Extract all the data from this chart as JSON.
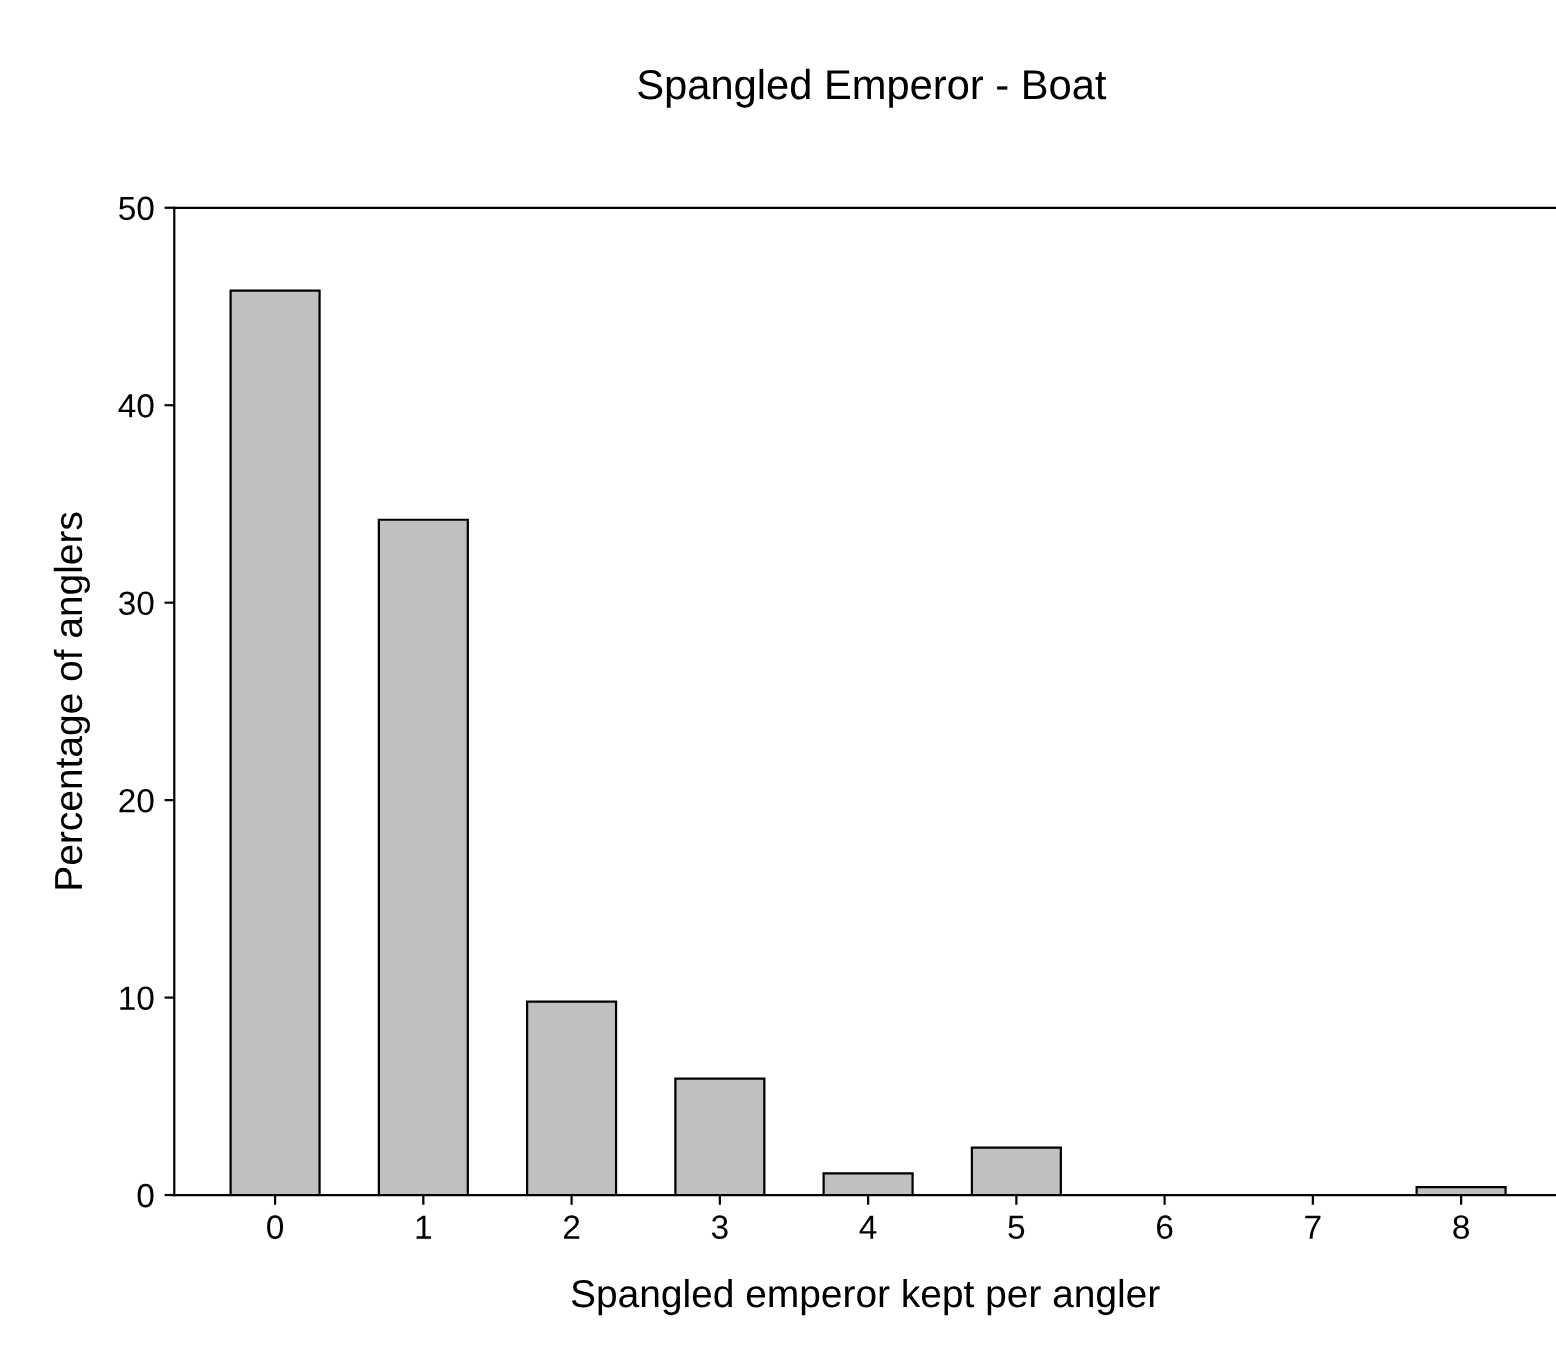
{
  "chart_data": {
    "type": "bar",
    "title": "Spangled Emperor - Boat",
    "xlabel": "Spangled emperor kept per angler",
    "ylabel": "Percentage of anglers",
    "categories": [
      "0",
      "1",
      "2",
      "3",
      "4",
      "5",
      "6",
      "7",
      "8"
    ],
    "values": [
      45.8,
      34.2,
      9.8,
      5.9,
      1.1,
      2.4,
      0,
      0,
      0.4
    ],
    "color": "#c0c0c0",
    "ylim": [
      0,
      50
    ],
    "yticks": [
      0,
      10,
      20,
      30,
      40,
      50
    ],
    "grid": false,
    "legend": false
  }
}
